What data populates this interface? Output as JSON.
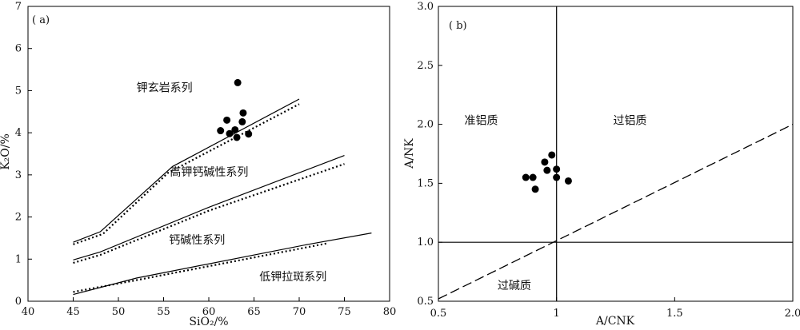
{
  "chart_data": [
    {
      "type": "scatter",
      "panel_label": "( a)",
      "xlabel": "SiO₂/%",
      "ylabel": "K₂O/%",
      "xlim": [
        40,
        80
      ],
      "ylim": [
        0,
        7
      ],
      "x_ticks": [
        40,
        45,
        50,
        55,
        60,
        65,
        70,
        75,
        80
      ],
      "y_ticks": [
        0,
        1,
        2,
        3,
        4,
        5,
        6,
        7
      ],
      "points": [
        {
          "x": 63.2,
          "y": 5.19
        },
        {
          "x": 62.0,
          "y": 4.3
        },
        {
          "x": 63.8,
          "y": 4.47
        },
        {
          "x": 61.3,
          "y": 4.05
        },
        {
          "x": 62.3,
          "y": 3.98
        },
        {
          "x": 62.9,
          "y": 4.07
        },
        {
          "x": 63.7,
          "y": 4.26
        },
        {
          "x": 63.1,
          "y": 3.89
        },
        {
          "x": 64.4,
          "y": 3.97
        }
      ],
      "boundary_lines": [
        {
          "style": "solid",
          "points": [
            [
              45,
              1.4
            ],
            [
              48,
              1.65
            ],
            [
              56,
              3.2
            ],
            [
              70,
              4.8
            ]
          ]
        },
        {
          "style": "dotted",
          "points": [
            [
              45,
              1.35
            ],
            [
              48.3,
              1.6
            ],
            [
              55.5,
              3.05
            ],
            [
              70,
              4.68
            ]
          ]
        },
        {
          "style": "solid",
          "points": [
            [
              45,
              0.98
            ],
            [
              48,
              1.17
            ],
            [
              60,
              2.23
            ],
            [
              75,
              3.46
            ]
          ]
        },
        {
          "style": "dotted",
          "points": [
            [
              45,
              0.91
            ],
            [
              48,
              1.1
            ],
            [
              60,
              2.15
            ],
            [
              75,
              3.26
            ]
          ]
        },
        {
          "style": "solid",
          "points": [
            [
              45,
              0.16
            ],
            [
              52,
              0.55
            ],
            [
              71,
              1.35
            ],
            [
              78,
              1.62
            ]
          ]
        },
        {
          "style": "dotted",
          "points": [
            [
              45,
              0.22
            ],
            [
              52,
              0.5
            ],
            [
              73,
              1.37
            ]
          ]
        }
      ],
      "annotations": [
        {
          "text": "钾玄岩系列",
          "x": 52.0,
          "y": 4.98
        },
        {
          "text": "高钾钙碱性系列",
          "x": 55.7,
          "y": 2.98
        },
        {
          "text": "钙碱性系列",
          "x": 55.6,
          "y": 1.37
        },
        {
          "text": "低钾拉斑系列",
          "x": 65.6,
          "y": 0.49
        }
      ]
    },
    {
      "type": "scatter",
      "panel_label": "( b)",
      "xlabel": "A/CNK",
      "ylabel": "A/NK",
      "xlim": [
        0.5,
        2.0
      ],
      "ylim": [
        0.5,
        3.0
      ],
      "x_ticks": [
        "0.5",
        "1",
        "1.5",
        "2.0"
      ],
      "y_ticks": [
        "0.5",
        "1.0",
        "1.5",
        "2.0",
        "2.5",
        "3.0"
      ],
      "points": [
        {
          "x": 0.98,
          "y": 1.74
        },
        {
          "x": 0.95,
          "y": 1.68
        },
        {
          "x": 0.96,
          "y": 1.61
        },
        {
          "x": 1.0,
          "y": 1.62
        },
        {
          "x": 0.87,
          "y": 1.55
        },
        {
          "x": 0.9,
          "y": 1.55
        },
        {
          "x": 1.0,
          "y": 1.55
        },
        {
          "x": 1.05,
          "y": 1.52
        },
        {
          "x": 0.91,
          "y": 1.45
        }
      ],
      "reference_lines": [
        {
          "style": "solid",
          "points": [
            [
              1.0,
              0.5
            ],
            [
              1.0,
              3.0
            ]
          ]
        },
        {
          "style": "solid",
          "points": [
            [
              0.5,
              1.0
            ],
            [
              2.0,
              1.0
            ]
          ]
        },
        {
          "style": "dashed",
          "points": [
            [
              0.5,
              0.52
            ],
            [
              2.0,
              2.0
            ]
          ]
        }
      ],
      "annotations": [
        {
          "text": "准铝质",
          "x": 0.61,
          "y": 2.0
        },
        {
          "text": "过铝质",
          "x": 1.24,
          "y": 2.0
        },
        {
          "text": "过碱质",
          "x": 0.75,
          "y": 0.6
        }
      ]
    }
  ]
}
